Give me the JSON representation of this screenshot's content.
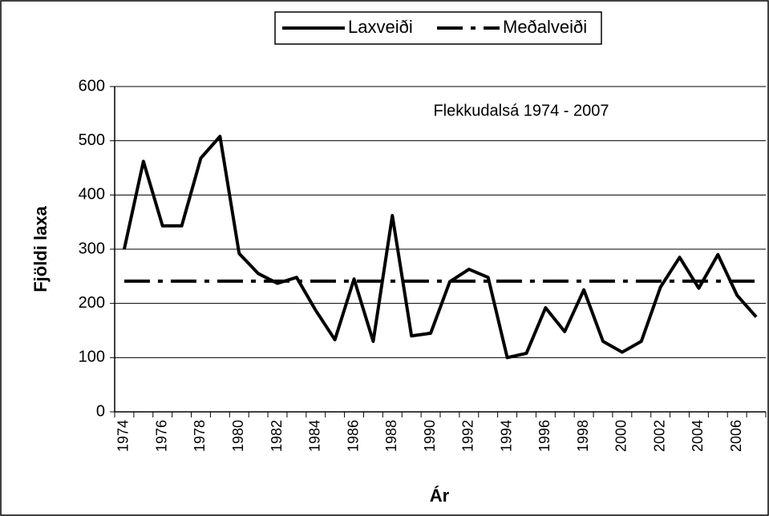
{
  "chart_data": {
    "type": "line",
    "title": "Flekkudalsá 1974 - 2007",
    "xlabel": "Ár",
    "ylabel": "Fjöldi laxa",
    "categories": [
      "1974",
      null,
      "1976",
      null,
      "1978",
      null,
      "1980",
      null,
      "1982",
      null,
      "1984",
      null,
      "1986",
      null,
      "1988",
      null,
      "1990",
      null,
      "1992",
      null,
      "1994",
      null,
      "1996",
      null,
      "1998",
      null,
      "2000",
      null,
      "2002",
      null,
      "2004",
      null,
      "2006",
      null
    ],
    "series": [
      {
        "name": "Laxveiði",
        "color": "#000000",
        "dash": "solid",
        "values": [
          300,
          462,
          343,
          343,
          468,
          508,
          292,
          255,
          237,
          248,
          187,
          133,
          245,
          130,
          362,
          140,
          145,
          240,
          263,
          248,
          100,
          108,
          192,
          148,
          225,
          130,
          110,
          130,
          230,
          285,
          228,
          290,
          215,
          175
        ]
      },
      {
        "name": "Meðalveiði",
        "color": "#000000",
        "dash": "dashdot",
        "values": [
          241,
          241,
          241,
          241,
          241,
          241,
          241,
          241,
          241,
          241,
          241,
          241,
          241,
          241,
          241,
          241,
          241,
          241,
          241,
          241,
          241,
          241,
          241,
          241,
          241,
          241,
          241,
          241,
          241,
          241,
          241,
          241,
          241,
          241
        ]
      }
    ],
    "ylim": [
      0,
      600
    ],
    "yticks": [
      0,
      100,
      200,
      300,
      400,
      500,
      600
    ],
    "grid": true,
    "legend": "top"
  }
}
